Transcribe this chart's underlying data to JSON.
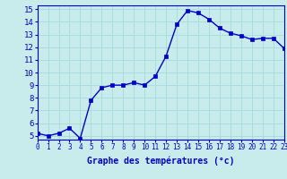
{
  "x": [
    0,
    1,
    2,
    3,
    4,
    5,
    6,
    7,
    8,
    9,
    10,
    11,
    12,
    13,
    14,
    15,
    16,
    17,
    18,
    19,
    20,
    21,
    22,
    23
  ],
  "y": [
    5.2,
    5.0,
    5.2,
    5.6,
    4.8,
    7.8,
    8.8,
    9.0,
    9.0,
    9.2,
    9.0,
    9.7,
    11.3,
    13.8,
    14.9,
    14.7,
    14.2,
    13.5,
    13.1,
    12.9,
    12.6,
    12.7,
    12.7,
    11.9
  ],
  "line_color": "#0000cc",
  "marker": "s",
  "marker_size": 2.5,
  "line_width": 1.0,
  "xlim": [
    0,
    23
  ],
  "ylim": [
    4.7,
    15.3
  ],
  "yticks": [
    5,
    6,
    7,
    8,
    9,
    10,
    11,
    12,
    13,
    14,
    15
  ],
  "xticks": [
    0,
    1,
    2,
    3,
    4,
    5,
    6,
    7,
    8,
    9,
    10,
    11,
    12,
    13,
    14,
    15,
    16,
    17,
    18,
    19,
    20,
    21,
    22,
    23
  ],
  "xlabel": "Graphe des températures (°c)",
  "background_color": "#c8ecec",
  "plot_bg_color": "#c8ecec",
  "grid_color": "#aadddd",
  "axis_label_color": "#0000cc",
  "tick_color": "#0000cc",
  "border_color": "#0000cc",
  "xlabel_fontsize": 7,
  "tick_fontsize": 5.5,
  "ytick_fontsize": 6.5
}
